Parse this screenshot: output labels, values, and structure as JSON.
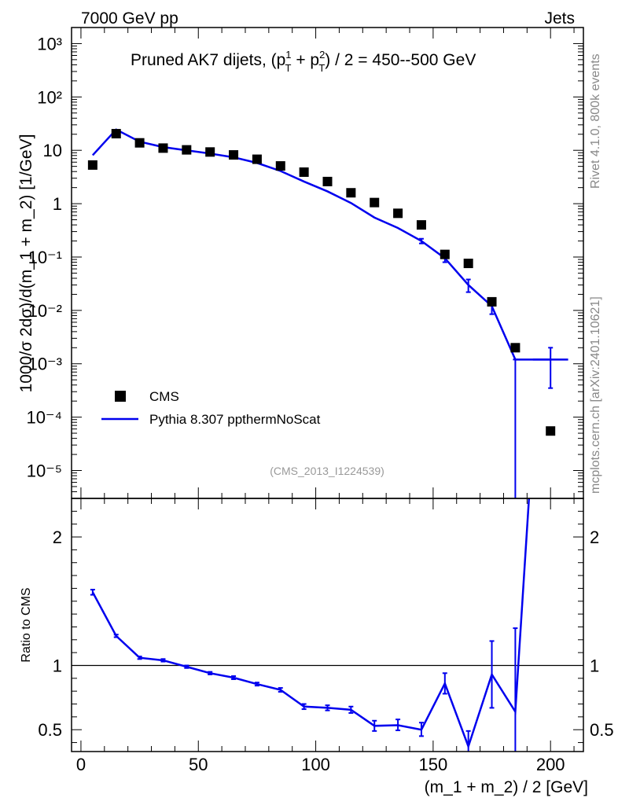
{
  "header": {
    "left": "7000 GeV pp",
    "right": "Jets",
    "side_top": "Rivet 4.1.0,  800k events",
    "side_bottom": "mcplots.cern.ch [arXiv:2401.10621]"
  },
  "chart_data": [
    {
      "type": "scatter",
      "title_prefix": "Pruned AK7 dijets, (p",
      "title_sup1": "1",
      "title_mid": " + p",
      "title_sup2": "2",
      "title_sub": "T",
      "title_suffix": ") / 2 = 450--500 GeV",
      "ylabel": "1000/σ  2dσ)/d(m_1 + m_2) [1/GeV]",
      "yscale": "log",
      "ylim": [
        3e-06,
        2000
      ],
      "xlim": [
        -4,
        214
      ],
      "ref_label": "(CMS_2013_I1224539)",
      "ytick_labels": [
        "10⁻⁵",
        "10⁻⁴",
        "10⁻³",
        "10⁻²",
        "10⁻¹",
        "1",
        "10",
        "10²",
        "10³"
      ],
      "legend": {
        "placement": "bottom-left",
        "data_label": "CMS",
        "mc_label": "Pythia 8.307 ppthermNoScat"
      },
      "series": [
        {
          "name": "CMS",
          "x": [
            5,
            15,
            25,
            35,
            45,
            55,
            65,
            75,
            85,
            95,
            105,
            115,
            125,
            135,
            145,
            155,
            165,
            175,
            185,
            200
          ],
          "values": [
            5.3,
            20.5,
            13.8,
            11.0,
            10.2,
            9.3,
            8.2,
            6.8,
            5.1,
            3.9,
            2.6,
            1.6,
            1.05,
            0.66,
            0.4,
            0.112,
            0.076,
            0.0145,
            0.002,
            5.5e-05
          ]
        },
        {
          "name": "Pythia 8.307 ppthermNoScat",
          "x": [
            5,
            15,
            25,
            35,
            45,
            55,
            65,
            75,
            85,
            95,
            105,
            115,
            125,
            135,
            145,
            155,
            165,
            175,
            185,
            200
          ],
          "values": [
            8.1,
            24.5,
            14.5,
            11.5,
            10.0,
            8.7,
            7.4,
            5.8,
            4.1,
            2.6,
            1.7,
            1.03,
            0.55,
            0.35,
            0.2,
            0.095,
            0.03,
            0.012,
            0.0012,
            0.0012
          ],
          "err_low": [
            0,
            0,
            0,
            0,
            0,
            0,
            0,
            0,
            0,
            0,
            0,
            0,
            0,
            0,
            0.02,
            0.015,
            0.008,
            0.0035,
            0.0012,
            0.00085
          ],
          "err_high": [
            0,
            0,
            0,
            0,
            0,
            0,
            0,
            0,
            0,
            0,
            0,
            0,
            0,
            0,
            0.02,
            0.015,
            0.008,
            0.0035,
            0,
            0.0008
          ],
          "bin_half": [
            0,
            0,
            0,
            0,
            0,
            0,
            0,
            0,
            0,
            0,
            0,
            0,
            0,
            0,
            0,
            0,
            0,
            0,
            0,
            7.5
          ]
        }
      ]
    },
    {
      "type": "line",
      "ylabel": "Ratio to CMS",
      "xlabel": "(m_1 + m_2) / 2 [GeV]",
      "ylim": [
        0.33,
        2.3
      ],
      "xlim": [
        -4,
        214
      ],
      "reference_value": 1,
      "yticks": [
        0.5,
        1,
        2
      ],
      "ytick_labels": [
        "0.5",
        "1",
        "2"
      ],
      "xticks": [
        0,
        50,
        100,
        150,
        200
      ],
      "xtick_labels": [
        "0",
        "50",
        "100",
        "150",
        "200"
      ],
      "series": [
        {
          "name": "Pythia 8.307 ppthermNoScat / CMS",
          "x": [
            5,
            15,
            25,
            35,
            45,
            55,
            65,
            75,
            85,
            95,
            105,
            115,
            125,
            135,
            145,
            155,
            165,
            175,
            185,
            191
          ],
          "values": [
            1.57,
            1.23,
            1.06,
            1.04,
            0.99,
            0.94,
            0.905,
            0.855,
            0.81,
            0.68,
            0.67,
            0.655,
            0.53,
            0.535,
            0.5,
            0.86,
            0.37,
            0.93,
            0.64,
            2.35
          ],
          "err_low": [
            0.02,
            0.01,
            0.01,
            0.01,
            0.01,
            0.01,
            0.012,
            0.012,
            0.015,
            0.02,
            0.02,
            0.025,
            0.04,
            0.04,
            0.05,
            0.08,
            0.06,
            0.26,
            0.45,
            0
          ],
          "err_high": [
            0.02,
            0.01,
            0.01,
            0.01,
            0.01,
            0.01,
            0.012,
            0.012,
            0.015,
            0.02,
            0.02,
            0.025,
            0.04,
            0.045,
            0.055,
            0.08,
            0.12,
            0.26,
            0.65,
            0
          ]
        }
      ]
    }
  ]
}
